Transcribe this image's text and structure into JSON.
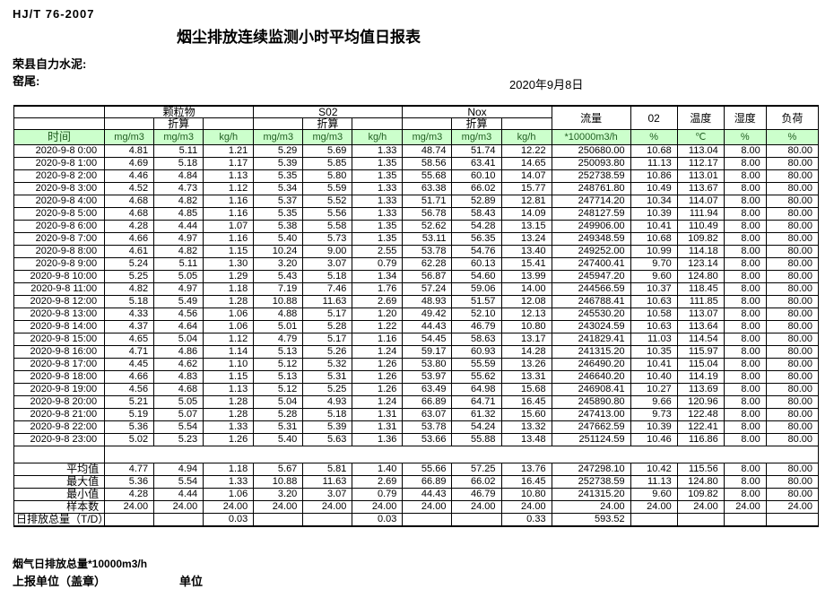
{
  "page": {
    "standard": "HJ/T 76-2007",
    "title": "烟尘排放连续监测小时平均值日报表",
    "company": "荣县自力水泥:",
    "site": "窑尾:",
    "date": "2020年9月8日"
  },
  "colors": {
    "unit_row_bg": "#ccffcc",
    "unit_row_text": "#215e21",
    "border": "#000000"
  },
  "table": {
    "time_header": "时间",
    "converted_label": "折算",
    "group_headers": {
      "particulate": "颗粒物",
      "so2": "S02",
      "nox": "Nox",
      "flow": "流量",
      "o2": "02",
      "temperature": "温度",
      "humidity": "湿度",
      "load": "负荷"
    },
    "units": [
      "mg/m3",
      "mg/m3",
      "kg/h",
      "mg/m3",
      "mg/m3",
      "kg/h",
      "mg/m3",
      "mg/m3",
      "kg/h",
      "*10000m3/h",
      "%",
      "℃",
      "%",
      "%"
    ],
    "rows": [
      {
        "time": "2020-9-8 0:00",
        "values": [
          "4.81",
          "5.11",
          "1.21",
          "5.29",
          "5.69",
          "1.33",
          "48.74",
          "51.74",
          "12.22",
          "250680.00",
          "10.68",
          "113.04",
          "8.00",
          "80.00"
        ]
      },
      {
        "time": "2020-9-8 1:00",
        "values": [
          "4.69",
          "5.18",
          "1.17",
          "5.39",
          "5.85",
          "1.35",
          "58.56",
          "63.41",
          "14.65",
          "250093.80",
          "11.13",
          "112.17",
          "8.00",
          "80.00"
        ]
      },
      {
        "time": "2020-9-8 2:00",
        "values": [
          "4.46",
          "4.84",
          "1.13",
          "5.35",
          "5.80",
          "1.35",
          "55.68",
          "60.10",
          "14.07",
          "252738.59",
          "10.86",
          "113.01",
          "8.00",
          "80.00"
        ]
      },
      {
        "time": "2020-9-8 3:00",
        "values": [
          "4.52",
          "4.73",
          "1.12",
          "5.34",
          "5.59",
          "1.33",
          "63.38",
          "66.02",
          "15.77",
          "248761.80",
          "10.49",
          "113.67",
          "8.00",
          "80.00"
        ]
      },
      {
        "time": "2020-9-8 4:00",
        "values": [
          "4.68",
          "4.82",
          "1.16",
          "5.37",
          "5.52",
          "1.33",
          "51.71",
          "52.89",
          "12.81",
          "247714.20",
          "10.34",
          "114.07",
          "8.00",
          "80.00"
        ]
      },
      {
        "time": "2020-9-8 5:00",
        "values": [
          "4.68",
          "4.85",
          "1.16",
          "5.35",
          "5.56",
          "1.33",
          "56.78",
          "58.43",
          "14.09",
          "248127.59",
          "10.39",
          "111.94",
          "8.00",
          "80.00"
        ]
      },
      {
        "time": "2020-9-8 6:00",
        "values": [
          "4.28",
          "4.44",
          "1.07",
          "5.38",
          "5.58",
          "1.35",
          "52.62",
          "54.28",
          "13.15",
          "249906.00",
          "10.41",
          "110.49",
          "8.00",
          "80.00"
        ]
      },
      {
        "time": "2020-9-8 7:00",
        "values": [
          "4.66",
          "4.97",
          "1.16",
          "5.40",
          "5.73",
          "1.35",
          "53.11",
          "56.35",
          "13.24",
          "249348.59",
          "10.68",
          "109.82",
          "8.00",
          "80.00"
        ]
      },
      {
        "time": "2020-9-8 8:00",
        "values": [
          "4.61",
          "4.82",
          "1.15",
          "10.24",
          "9.00",
          "2.55",
          "53.78",
          "54.76",
          "13.40",
          "249252.00",
          "10.99",
          "114.18",
          "8.00",
          "80.00"
        ]
      },
      {
        "time": "2020-9-8 9:00",
        "values": [
          "5.24",
          "5.11",
          "1.30",
          "3.20",
          "3.07",
          "0.79",
          "62.28",
          "60.13",
          "15.41",
          "247400.41",
          "9.70",
          "123.14",
          "8.00",
          "80.00"
        ]
      },
      {
        "time": "2020-9-8 10:00",
        "values": [
          "5.25",
          "5.05",
          "1.29",
          "5.43",
          "5.18",
          "1.34",
          "56.87",
          "54.60",
          "13.99",
          "245947.20",
          "9.60",
          "124.80",
          "8.00",
          "80.00"
        ]
      },
      {
        "time": "2020-9-8 11:00",
        "values": [
          "4.82",
          "4.97",
          "1.18",
          "7.19",
          "7.46",
          "1.76",
          "57.24",
          "59.06",
          "14.00",
          "244566.59",
          "10.37",
          "118.45",
          "8.00",
          "80.00"
        ]
      },
      {
        "time": "2020-9-8 12:00",
        "values": [
          "5.18",
          "5.49",
          "1.28",
          "10.88",
          "11.63",
          "2.69",
          "48.93",
          "51.57",
          "12.08",
          "246788.41",
          "10.63",
          "111.85",
          "8.00",
          "80.00"
        ]
      },
      {
        "time": "2020-9-8 13:00",
        "values": [
          "4.33",
          "4.56",
          "1.06",
          "4.88",
          "5.17",
          "1.20",
          "49.42",
          "52.10",
          "12.13",
          "245530.20",
          "10.58",
          "113.07",
          "8.00",
          "80.00"
        ]
      },
      {
        "time": "2020-9-8 14:00",
        "values": [
          "4.37",
          "4.64",
          "1.06",
          "5.01",
          "5.28",
          "1.22",
          "44.43",
          "46.79",
          "10.80",
          "243024.59",
          "10.63",
          "113.64",
          "8.00",
          "80.00"
        ]
      },
      {
        "time": "2020-9-8 15:00",
        "values": [
          "4.65",
          "5.04",
          "1.12",
          "4.79",
          "5.17",
          "1.16",
          "54.45",
          "58.63",
          "13.17",
          "241829.41",
          "11.03",
          "114.54",
          "8.00",
          "80.00"
        ]
      },
      {
        "time": "2020-9-8 16:00",
        "values": [
          "4.71",
          "4.86",
          "1.14",
          "5.13",
          "5.26",
          "1.24",
          "59.17",
          "60.93",
          "14.28",
          "241315.20",
          "10.35",
          "115.97",
          "8.00",
          "80.00"
        ]
      },
      {
        "time": "2020-9-8 17:00",
        "values": [
          "4.45",
          "4.62",
          "1.10",
          "5.12",
          "5.32",
          "1.26",
          "53.80",
          "55.59",
          "13.26",
          "246490.20",
          "10.41",
          "115.04",
          "8.00",
          "80.00"
        ]
      },
      {
        "time": "2020-9-8 18:00",
        "values": [
          "4.66",
          "4.83",
          "1.15",
          "5.13",
          "5.31",
          "1.26",
          "53.97",
          "55.62",
          "13.31",
          "246640.20",
          "10.40",
          "114.19",
          "8.00",
          "80.00"
        ]
      },
      {
        "time": "2020-9-8 19:00",
        "values": [
          "4.56",
          "4.68",
          "1.13",
          "5.12",
          "5.25",
          "1.26",
          "63.49",
          "64.98",
          "15.68",
          "246908.41",
          "10.27",
          "113.69",
          "8.00",
          "80.00"
        ]
      },
      {
        "time": "2020-9-8 20:00",
        "values": [
          "5.21",
          "5.05",
          "1.28",
          "5.04",
          "4.93",
          "1.24",
          "66.89",
          "64.71",
          "16.45",
          "245890.80",
          "9.66",
          "120.96",
          "8.00",
          "80.00"
        ]
      },
      {
        "time": "2020-9-8 21:00",
        "values": [
          "5.19",
          "5.07",
          "1.28",
          "5.28",
          "5.18",
          "1.31",
          "63.07",
          "61.32",
          "15.60",
          "247413.00",
          "9.73",
          "122.48",
          "8.00",
          "80.00"
        ]
      },
      {
        "time": "2020-9-8 22:00",
        "values": [
          "5.36",
          "5.54",
          "1.33",
          "5.31",
          "5.39",
          "1.31",
          "53.78",
          "54.24",
          "13.32",
          "247662.59",
          "10.39",
          "122.41",
          "8.00",
          "80.00"
        ]
      },
      {
        "time": "2020-9-8 23:00",
        "values": [
          "5.02",
          "5.23",
          "1.26",
          "5.40",
          "5.63",
          "1.36",
          "53.66",
          "55.88",
          "13.48",
          "251124.59",
          "10.46",
          "116.86",
          "8.00",
          "80.00"
        ]
      }
    ],
    "summary": [
      {
        "label": "平均值",
        "values": [
          "4.77",
          "4.94",
          "1.18",
          "5.67",
          "5.81",
          "1.40",
          "55.66",
          "57.25",
          "13.76",
          "247298.10",
          "10.42",
          "115.56",
          "8.00",
          "80.00"
        ]
      },
      {
        "label": "最大值",
        "values": [
          "5.36",
          "5.54",
          "1.33",
          "10.88",
          "11.63",
          "2.69",
          "66.89",
          "66.02",
          "16.45",
          "252738.59",
          "11.13",
          "124.80",
          "8.00",
          "80.00"
        ]
      },
      {
        "label": "最小值",
        "values": [
          "4.28",
          "4.44",
          "1.06",
          "3.20",
          "3.07",
          "0.79",
          "44.43",
          "46.79",
          "10.80",
          "241315.20",
          "9.60",
          "109.82",
          "8.00",
          "80.00"
        ]
      },
      {
        "label": "样本数",
        "values": [
          "24.00",
          "24.00",
          "24.00",
          "24.00",
          "24.00",
          "24.00",
          "24.00",
          "24.00",
          "24.00",
          "24.00",
          "24.00",
          "24.00",
          "24.00",
          "24.00"
        ]
      },
      {
        "label": "日排放总量（T/D）",
        "values": [
          "",
          "",
          "0.03",
          "",
          "",
          "0.03",
          "",
          "",
          "0.33",
          "593.52",
          "",
          "",
          "",
          ""
        ]
      }
    ]
  },
  "footer": {
    "note": "烟气日排放总量*10000m3/h",
    "report_unit": "上报单位（盖章）",
    "unit_label": "单位"
  }
}
